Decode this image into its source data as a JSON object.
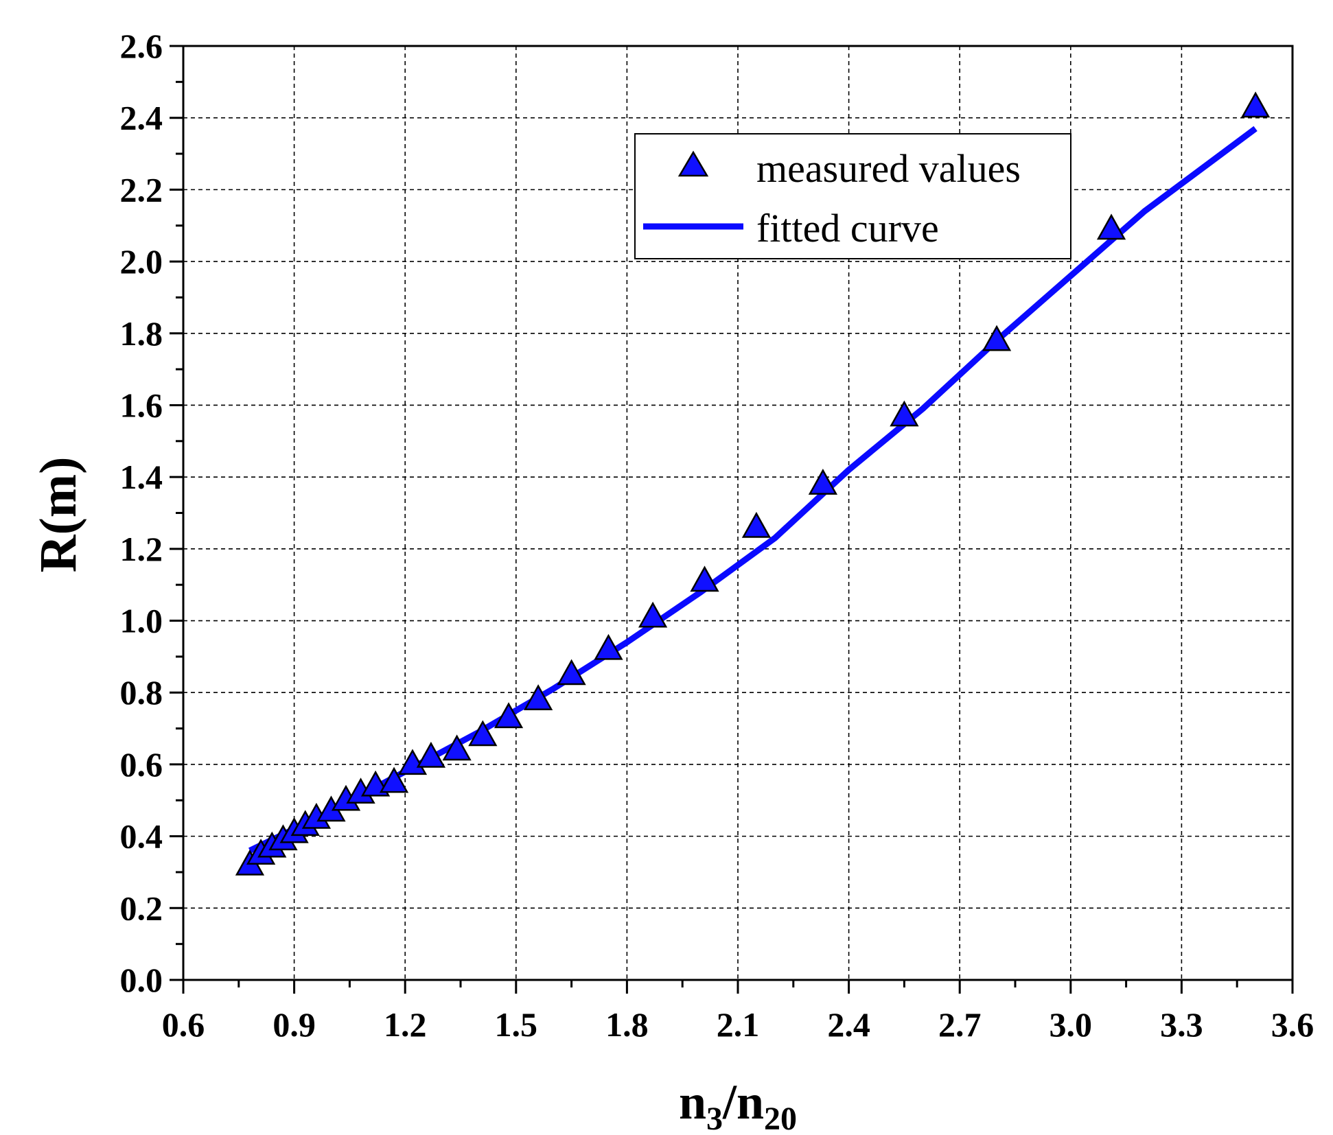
{
  "chart_data": {
    "type": "scatter",
    "xlabel": {
      "main": "n",
      "sub1": "3",
      "mid": "/n",
      "sub2": "20"
    },
    "ylabel": "R(m)",
    "xlim": [
      0.6,
      3.6
    ],
    "ylim": [
      0.0,
      2.6
    ],
    "x_ticks": [
      "0.6",
      "0.9",
      "1.2",
      "1.5",
      "1.8",
      "2.1",
      "2.4",
      "2.7",
      "3.0",
      "3.3",
      "3.6"
    ],
    "y_ticks": [
      "0.0",
      "0.2",
      "0.4",
      "0.6",
      "0.8",
      "1.0",
      "1.2",
      "1.4",
      "1.6",
      "1.8",
      "2.0",
      "2.2",
      "2.4",
      "2.6"
    ],
    "grid": true,
    "legend": {
      "position": "top-right",
      "items": [
        "measured values",
        "fitted curve"
      ]
    },
    "colors": {
      "series": "#1010ff",
      "line": "#0a0aff",
      "marker_edge": "#000000"
    },
    "series": [
      {
        "name": "measured values",
        "kind": "scatter",
        "marker": "triangle",
        "x": [
          0.78,
          0.81,
          0.84,
          0.87,
          0.9,
          0.93,
          0.96,
          1.0,
          1.04,
          1.08,
          1.12,
          1.17,
          1.22,
          1.27,
          1.34,
          1.41,
          1.48,
          1.56,
          1.65,
          1.75,
          1.87,
          2.01,
          2.15,
          2.33,
          2.55,
          2.8,
          3.11,
          3.5
        ],
        "y": [
          0.32,
          0.35,
          0.37,
          0.39,
          0.41,
          0.43,
          0.45,
          0.47,
          0.5,
          0.52,
          0.54,
          0.55,
          0.6,
          0.62,
          0.64,
          0.68,
          0.73,
          0.78,
          0.85,
          0.92,
          1.01,
          1.11,
          1.26,
          1.38,
          1.57,
          1.78,
          2.09,
          2.43
        ]
      },
      {
        "name": "fitted curve",
        "kind": "line",
        "x": [
          0.78,
          1.0,
          1.2,
          1.4,
          1.6,
          1.8,
          2.0,
          2.2,
          2.4,
          2.6,
          2.8,
          3.0,
          3.2,
          3.5
        ],
        "y": [
          0.36,
          0.47,
          0.58,
          0.69,
          0.81,
          0.94,
          1.08,
          1.23,
          1.42,
          1.59,
          1.78,
          1.96,
          2.14,
          2.37
        ]
      }
    ]
  }
}
